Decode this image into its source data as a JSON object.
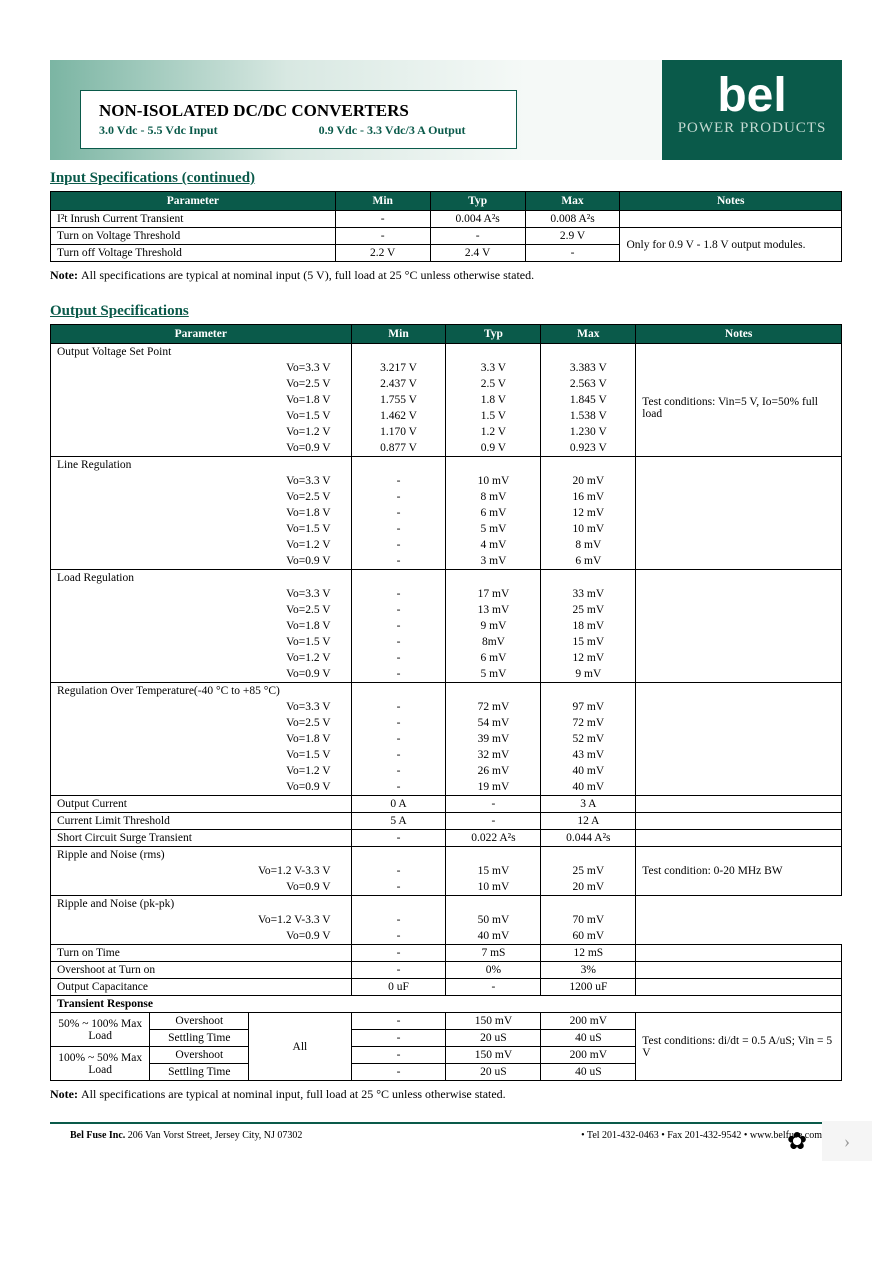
{
  "header": {
    "title": "NON-ISOLATED DC/DC CONVERTERS",
    "subtitle_in": "3.0 Vdc - 5.5 Vdc Input",
    "subtitle_out": "0.9 Vdc - 3.3 Vdc/3 A Output",
    "logo_text": "bel",
    "logo_sub": "POWER PRODUCTS"
  },
  "colors": {
    "teal": "#0a5a4a",
    "header_bg": "#0a5a4a"
  },
  "input_spec": {
    "title": "Input Specifications (continued)",
    "headers": [
      "Parameter",
      "Min",
      "Typ",
      "Max",
      "Notes"
    ],
    "rows": [
      {
        "param": "I²t Inrush Current Transient",
        "min": "-",
        "typ": "0.004 A²s",
        "max": "0.008 A²s",
        "notes": ""
      },
      {
        "param": "Turn on Voltage Threshold",
        "min": "-",
        "typ": "-",
        "max": "2.9 V",
        "notes_rowspan": "Only for 0.9 V - 1.8 V output modules."
      },
      {
        "param": "Turn off Voltage Threshold",
        "min": "2.2 V",
        "typ": "2.4 V",
        "max": "-"
      }
    ],
    "note": "All specifications are typical at nominal input (5 V), full load at 25 °C unless otherwise stated."
  },
  "output_spec": {
    "title": "Output Specifications",
    "headers": [
      "Parameter",
      "Min",
      "Typ",
      "Max",
      "Notes"
    ],
    "voltage_set_point": {
      "label": "Output Voltage Set Point",
      "rows": [
        {
          "vo": "Vo=3.3 V",
          "min": "3.217 V",
          "typ": "3.3 V",
          "max": "3.383 V"
        },
        {
          "vo": "Vo=2.5 V",
          "min": "2.437 V",
          "typ": "2.5 V",
          "max": "2.563 V"
        },
        {
          "vo": "Vo=1.8 V",
          "min": "1.755 V",
          "typ": "1.8 V",
          "max": "1.845 V"
        },
        {
          "vo": "Vo=1.5 V",
          "min": "1.462 V",
          "typ": "1.5 V",
          "max": "1.538 V"
        },
        {
          "vo": "Vo=1.2 V",
          "min": "1.170 V",
          "typ": "1.2 V",
          "max": "1.230 V"
        },
        {
          "vo": "Vo=0.9 V",
          "min": "0.877 V",
          "typ": "0.9 V",
          "max": "0.923 V"
        }
      ],
      "notes": "Test conditions: Vin=5 V, Io=50% full load"
    },
    "line_reg": {
      "label": "Line Regulation",
      "rows": [
        {
          "vo": "Vo=3.3 V",
          "min": "-",
          "typ": "10 mV",
          "max": "20 mV"
        },
        {
          "vo": "Vo=2.5 V",
          "min": "-",
          "typ": "8 mV",
          "max": "16 mV"
        },
        {
          "vo": "Vo=1.8 V",
          "min": "-",
          "typ": "6 mV",
          "max": "12 mV"
        },
        {
          "vo": "Vo=1.5 V",
          "min": "-",
          "typ": "5 mV",
          "max": "10 mV"
        },
        {
          "vo": "Vo=1.2 V",
          "min": "-",
          "typ": "4 mV",
          "max": "8 mV"
        },
        {
          "vo": "Vo=0.9 V",
          "min": "-",
          "typ": "3 mV",
          "max": "6 mV"
        }
      ]
    },
    "load_reg": {
      "label": "Load Regulation",
      "rows": [
        {
          "vo": "Vo=3.3 V",
          "min": "-",
          "typ": "17 mV",
          "max": "33 mV"
        },
        {
          "vo": "Vo=2.5 V",
          "min": "-",
          "typ": "13 mV",
          "max": "25 mV"
        },
        {
          "vo": "Vo=1.8 V",
          "min": "-",
          "typ": "9 mV",
          "max": "18 mV"
        },
        {
          "vo": "Vo=1.5 V",
          "min": "-",
          "typ": "8mV",
          "max": "15 mV"
        },
        {
          "vo": "Vo=1.2 V",
          "min": "-",
          "typ": "6 mV",
          "max": "12 mV"
        },
        {
          "vo": "Vo=0.9 V",
          "min": "-",
          "typ": "5 mV",
          "max": "9 mV"
        }
      ]
    },
    "reg_temp": {
      "label": "Regulation Over Temperature(-40 °C to +85 °C)",
      "rows": [
        {
          "vo": "Vo=3.3 V",
          "min": "-",
          "typ": "72 mV",
          "max": "97 mV"
        },
        {
          "vo": "Vo=2.5 V",
          "min": "-",
          "typ": "54 mV",
          "max": "72 mV"
        },
        {
          "vo": "Vo=1.8 V",
          "min": "-",
          "typ": "39 mV",
          "max": "52 mV"
        },
        {
          "vo": "Vo=1.5 V",
          "min": "-",
          "typ": "32 mV",
          "max": "43 mV"
        },
        {
          "vo": "Vo=1.2 V",
          "min": "-",
          "typ": "26 mV",
          "max": "40 mV"
        },
        {
          "vo": "Vo=0.9 V",
          "min": "-",
          "typ": "19 mV",
          "max": "40 mV"
        }
      ]
    },
    "output_current": {
      "param": "Output Current",
      "min": "0 A",
      "typ": "-",
      "max": "3 A"
    },
    "current_limit": {
      "param": "Current Limit Threshold",
      "min": "5 A",
      "typ": "-",
      "max": "12 A"
    },
    "short_circuit": {
      "param": "Short Circuit Surge Transient",
      "min": "-",
      "typ": "0.022 A²s",
      "max": "0.044 A²s"
    },
    "ripple_rms": {
      "label": "Ripple and Noise (rms)",
      "rows": [
        {
          "vo": "Vo=1.2 V-3.3 V",
          "min": "-",
          "typ": "15 mV",
          "max": "25 mV"
        },
        {
          "vo": "Vo=0.9 V",
          "min": "-",
          "typ": "10 mV",
          "max": "20 mV"
        }
      ],
      "notes": "Test condition: 0-20 MHz BW"
    },
    "ripple_pk": {
      "label": "Ripple and Noise (pk-pk)",
      "rows": [
        {
          "vo": "Vo=1.2 V-3.3 V",
          "min": "-",
          "typ": "50 mV",
          "max": "70 mV"
        },
        {
          "vo": "Vo=0.9 V",
          "min": "-",
          "typ": "40 mV",
          "max": "60 mV"
        }
      ]
    },
    "turn_on": {
      "param": "Turn on Time",
      "min": "-",
      "typ": "7 mS",
      "max": "12 mS"
    },
    "overshoot": {
      "param": "Overshoot at Turn on",
      "min": "-",
      "typ": "0%",
      "max": "3%"
    },
    "out_cap": {
      "param": "Output Capacitance",
      "min": "0 uF",
      "typ": "-",
      "max": "1200 uF"
    },
    "transient": {
      "label": "Transient Response",
      "all": "All",
      "r1_label": "50% ~ 100% Max Load",
      "r2_label": "100% ~ 50% Max Load",
      "overshoot_label": "Overshoot",
      "settling_label": "Settling Time",
      "rows": [
        {
          "min": "-",
          "typ": "150 mV",
          "max": "200 mV"
        },
        {
          "min": "-",
          "typ": "20 uS",
          "max": "40 uS"
        },
        {
          "min": "-",
          "typ": "150 mV",
          "max": "200 mV"
        },
        {
          "min": "-",
          "typ": "20 uS",
          "max": "40 uS"
        }
      ],
      "notes": "Test conditions: di/dt = 0.5 A/uS; Vin = 5 V"
    },
    "note": "All specifications are typical at nominal input, full load at 25 °C unless otherwise stated."
  },
  "footer": {
    "left": "Bel Fuse Inc. 206 Van Vorst Street, Jersey City, NJ 07302",
    "right": "• Tel 201-432-0463 • Fax 201-432-9542 • www.belfuse.com"
  }
}
